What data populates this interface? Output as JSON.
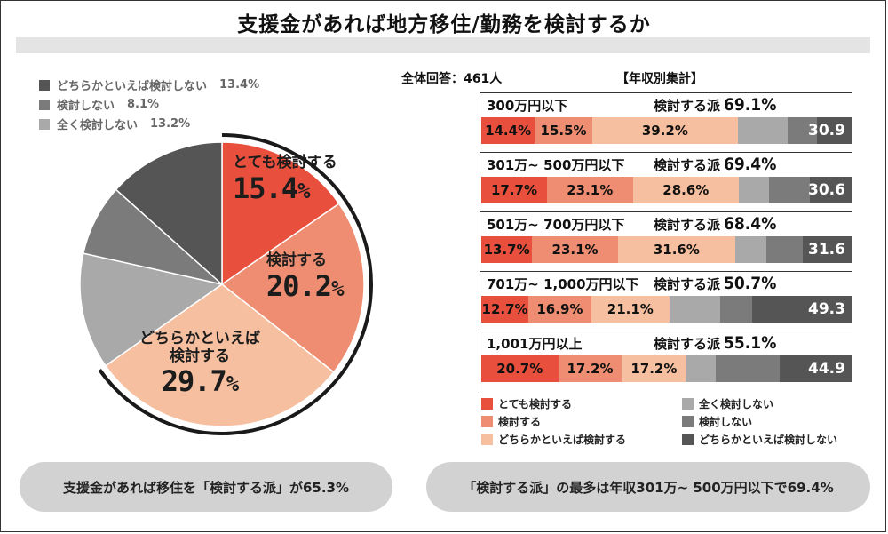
{
  "title": "支援金があれば地方移住/勤務を検討するか",
  "colors": {
    "very_positive": "#e8503d",
    "positive": "#ee8d71",
    "somewhat_positive": "#f6bf9f",
    "not_at_all": "#a9a9a9",
    "not": "#7b7b7b",
    "somewhat_not": "#555555"
  },
  "pie_legend": [
    {
      "label": "どちらかといえば検討しない",
      "value": "13.4%"
    },
    {
      "label": "検討しない",
      "value": "8.1%"
    },
    {
      "label": "全く検討しない",
      "value": "13.2%"
    }
  ],
  "pie_labels": {
    "very_positive": {
      "line1": "とても検討する",
      "num": "15.4",
      "pct": "%"
    },
    "positive": {
      "line1": "検討する",
      "num": "20.2",
      "pct": "%"
    },
    "somewhat_positive": {
      "line1": "どちらかといえば",
      "line2": "検討する",
      "num": "29.7",
      "pct": "%"
    }
  },
  "total_label": "全体回答：461人",
  "by_income_label": "【年収別集計】",
  "bar_legend": [
    {
      "label": "とても検討する"
    },
    {
      "label": "検討する"
    },
    {
      "label": "どちらかといえば検討する"
    },
    {
      "label": "全く検討しない"
    },
    {
      "label": "検討しない"
    },
    {
      "label": "どちらかといえば検討しない"
    }
  ],
  "rows_text": [
    {
      "category": "300万円以下",
      "kentou": "検討する派",
      "kentou_val": "69.1%",
      "labels": [
        "14.4%",
        "15.5%",
        "39.2%",
        "30.9"
      ]
    },
    {
      "category": "301万~ 500万円以下",
      "kentou": "検討する派",
      "kentou_val": "69.4%",
      "labels": [
        "17.7%",
        "23.1%",
        "28.6%",
        "30.6"
      ]
    },
    {
      "category": "501万~ 700万円以下",
      "kentou": "検討する派",
      "kentou_val": "68.4%",
      "labels": [
        "13.7%",
        "23.1%",
        "31.6%",
        "31.6"
      ]
    },
    {
      "category": "701万~ 1,000万円以下",
      "kentou": "検討する派",
      "kentou_val": "50.7%",
      "labels": [
        "12.7%",
        "16.9%",
        "21.1%",
        "49.3"
      ]
    },
    {
      "category": "1,001万円以上",
      "kentou": "検討する派",
      "kentou_val": "55.1%",
      "labels": [
        "20.7%",
        "17.2%",
        "17.2%",
        "44.9"
      ]
    }
  ],
  "summary_left": "支援金があれば移住を「検討する派」が65.3%",
  "summary_right": "「検討する派」の最多は年収301万~ 500万円以下で69.4%",
  "chart_data": [
    {
      "type": "pie",
      "title": "支援金があれば地方移住/勤務を検討するか",
      "categories": [
        "とても検討する",
        "検討する",
        "どちらかといえば検討する",
        "全く検討しない",
        "検討しない",
        "どちらかといえば検討しない"
      ],
      "values": [
        15.4,
        20.2,
        29.7,
        13.2,
        8.1,
        13.4
      ],
      "start_angle_deg": 0,
      "direction": "clockwise"
    },
    {
      "type": "bar",
      "stacked": true,
      "orientation": "horizontal",
      "title": "【年収別集計】",
      "categories": [
        "300万円以下",
        "301万~ 500万円以下",
        "501万~ 700万円以下",
        "701万~ 1,000万円以下",
        "1,001万円以上"
      ],
      "series": [
        {
          "name": "とても検討する",
          "values": [
            14.4,
            17.7,
            13.7,
            12.7,
            20.7
          ]
        },
        {
          "name": "検討する",
          "values": [
            15.5,
            23.1,
            23.1,
            16.9,
            17.2
          ]
        },
        {
          "name": "どちらかといえば検討する",
          "values": [
            39.2,
            28.6,
            31.6,
            21.1,
            17.2
          ]
        },
        {
          "name": "全く検討しない",
          "values": [
            13.4,
            8.0,
            8.5,
            13.7,
            8.0
          ]
        },
        {
          "name": "検討しない",
          "values": [
            8.0,
            11.2,
            9.7,
            8.6,
            17.2
          ]
        },
        {
          "name": "どちらかといえば検討しない",
          "values": [
            9.5,
            11.4,
            13.4,
            27.0,
            19.7
          ]
        }
      ],
      "xlim": [
        0,
        100
      ]
    }
  ]
}
